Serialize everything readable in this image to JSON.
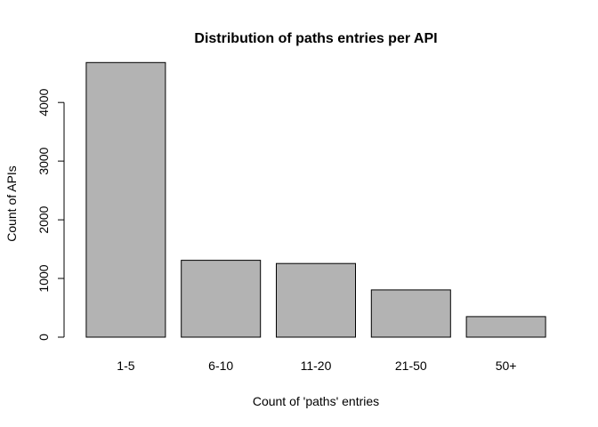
{
  "chart_data": {
    "type": "bar",
    "title": "Distribution of paths entries per API",
    "xlabel": "Count of 'paths' entries",
    "ylabel": "Count of APIs",
    "categories": [
      "1-5",
      "6-10",
      "11-20",
      "21-50",
      "50+"
    ],
    "values": [
      4680,
      1310,
      1255,
      805,
      350
    ],
    "ylim": [
      0,
      4700
    ],
    "yticks": [
      0,
      1000,
      2000,
      3000,
      4000
    ],
    "grid": false,
    "bar_color": "#b3b3b3",
    "bar_border_color": "#000000"
  }
}
